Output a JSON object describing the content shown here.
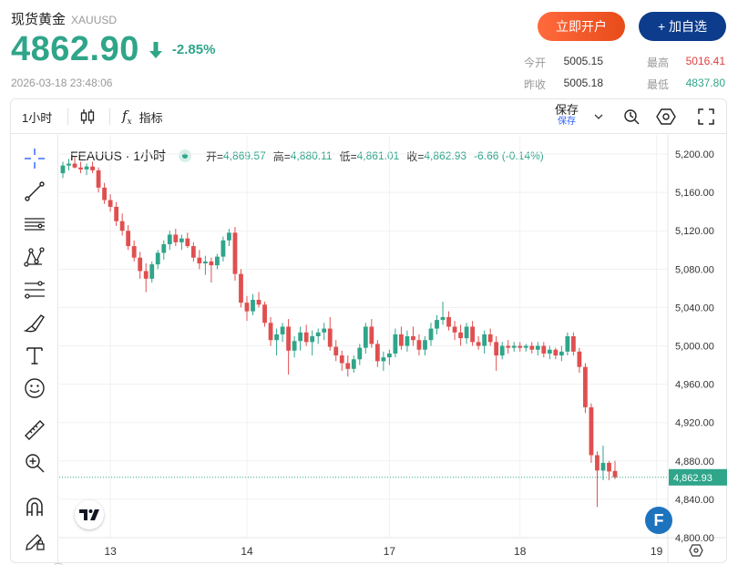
{
  "header": {
    "name": "现货黄金",
    "symbol": "XAUUSD",
    "price": "4862.90",
    "change_pct": "-2.85%",
    "timestamp": "2026-03-18 23:48:06",
    "open_account_label": "立即开户",
    "add_watch_label": "+ 加自选"
  },
  "stats": {
    "open_label": "今开",
    "open_value": "5005.15",
    "prev_close_label": "昨收",
    "prev_close_value": "5005.18",
    "high_label": "最高",
    "high_value": "5016.41",
    "low_label": "最低",
    "low_value": "4837.80",
    "high_color": "#e03e3e",
    "low_color": "#2fa58a"
  },
  "toolbar": {
    "interval": "1小时",
    "indicators_label": "指标",
    "save_label": "保存",
    "save_sub": "保存"
  },
  "legend": {
    "symbol": "FEAUUS · 1小时",
    "open_label": "开=",
    "open": "4,869.57",
    "high_label": "高=",
    "high": "4,880.11",
    "low_label": "低=",
    "low": "4,861.01",
    "close_label": "收=",
    "close": "4,862.93",
    "change": "-6.66 (-0.14%)"
  },
  "colors": {
    "up": "#2fa58a",
    "down": "#e04f4f",
    "accent": "#2962ff",
    "watch": "#0d3c8c",
    "open": "#ef5a27"
  },
  "left_tools": [
    "crosshair-icon",
    "trend-line-icon",
    "horizontal-lines-icon",
    "pattern-icon",
    "fib-icon",
    "brush-icon",
    "text-icon",
    "emoji-icon",
    "ruler-icon",
    "zoom-in-icon",
    "magnet-icon",
    "lock-edit-icon"
  ],
  "chart_data": {
    "type": "candlestick",
    "x_tick_labels": [
      "13",
      "14",
      "17",
      "18",
      "19"
    ],
    "y_tick_labels": [
      "5,200.00",
      "5,160.00",
      "5,120.00",
      "5,080.00",
      "5,040.00",
      "5,000.00",
      "4,960.00",
      "4,920.00",
      "4,880.00",
      "4,840.00",
      "4,800.00"
    ],
    "ylim": [
      4800,
      5220
    ],
    "last_price": 4862.93,
    "last_price_label": "4,862.93",
    "grid": true,
    "candles": [
      [
        5180,
        5192,
        5175,
        5188
      ],
      [
        5188,
        5195,
        5183,
        5190
      ],
      [
        5190,
        5197,
        5185,
        5186
      ],
      [
        5186,
        5192,
        5180,
        5184
      ],
      [
        5184,
        5190,
        5178,
        5187
      ],
      [
        5187,
        5192,
        5180,
        5183
      ],
      [
        5183,
        5186,
        5160,
        5165
      ],
      [
        5165,
        5170,
        5148,
        5152
      ],
      [
        5152,
        5158,
        5140,
        5145
      ],
      [
        5145,
        5150,
        5125,
        5130
      ],
      [
        5130,
        5138,
        5115,
        5120
      ],
      [
        5120,
        5126,
        5100,
        5104
      ],
      [
        5104,
        5110,
        5088,
        5092
      ],
      [
        5092,
        5098,
        5070,
        5078
      ],
      [
        5078,
        5086,
        5056,
        5070
      ],
      [
        5070,
        5088,
        5066,
        5085
      ],
      [
        5085,
        5100,
        5080,
        5097
      ],
      [
        5097,
        5110,
        5090,
        5106
      ],
      [
        5106,
        5120,
        5100,
        5116
      ],
      [
        5116,
        5122,
        5104,
        5108
      ],
      [
        5108,
        5116,
        5100,
        5112
      ],
      [
        5112,
        5118,
        5102,
        5104
      ],
      [
        5104,
        5108,
        5088,
        5092
      ],
      [
        5092,
        5100,
        5080,
        5086
      ],
      [
        5086,
        5094,
        5074,
        5088
      ],
      [
        5088,
        5092,
        5066,
        5084
      ],
      [
        5084,
        5096,
        5080,
        5093
      ],
      [
        5093,
        5114,
        5088,
        5110
      ],
      [
        5110,
        5122,
        5104,
        5118
      ],
      [
        5118,
        5124,
        5068,
        5075
      ],
      [
        5075,
        5080,
        5040,
        5045
      ],
      [
        5045,
        5052,
        5026,
        5036
      ],
      [
        5036,
        5054,
        5032,
        5048
      ],
      [
        5048,
        5056,
        5040,
        5043
      ],
      [
        5043,
        5046,
        5020,
        5024
      ],
      [
        5024,
        5030,
        5000,
        5006
      ],
      [
        5006,
        5018,
        4990,
        5012
      ],
      [
        5012,
        5024,
        5004,
        5020
      ],
      [
        5020,
        5028,
        4970,
        4995
      ],
      [
        4995,
        5010,
        4988,
        5005
      ],
      [
        5005,
        5020,
        4995,
        5014
      ],
      [
        5014,
        5022,
        5000,
        5004
      ],
      [
        5004,
        5016,
        4990,
        5010
      ],
      [
        5010,
        5018,
        5002,
        5014
      ],
      [
        5014,
        5024,
        5006,
        5018
      ],
      [
        5018,
        5030,
        4995,
        4999
      ],
      [
        4999,
        5006,
        4984,
        4990
      ],
      [
        4990,
        4995,
        4974,
        4982
      ],
      [
        4982,
        4990,
        4968,
        4976
      ],
      [
        4976,
        4990,
        4972,
        4986
      ],
      [
        4986,
        5002,
        4980,
        4998
      ],
      [
        4998,
        5024,
        4992,
        5020
      ],
      [
        5020,
        5028,
        4998,
        5002
      ],
      [
        5002,
        5006,
        4978,
        4984
      ],
      [
        4984,
        4994,
        4974,
        4988
      ],
      [
        4988,
        4996,
        4980,
        4992
      ],
      [
        4992,
        5018,
        4988,
        5012
      ],
      [
        5012,
        5020,
        4996,
        5000
      ],
      [
        5000,
        5016,
        4994,
        5010
      ],
      [
        5010,
        5020,
        5000,
        5006
      ],
      [
        5006,
        5012,
        4990,
        4996
      ],
      [
        4996,
        5010,
        4990,
        5006
      ],
      [
        5006,
        5024,
        5000,
        5018
      ],
      [
        5018,
        5032,
        5012,
        5027
      ],
      [
        5027,
        5046,
        5022,
        5030
      ],
      [
        5030,
        5036,
        5016,
        5020
      ],
      [
        5020,
        5026,
        5006,
        5014
      ],
      [
        5014,
        5022,
        5000,
        5008
      ],
      [
        5008,
        5024,
        5002,
        5020
      ],
      [
        5020,
        5026,
        5000,
        5004
      ],
      [
        5004,
        5010,
        4996,
        5000
      ],
      [
        5000,
        5016,
        4992,
        5012
      ],
      [
        5012,
        5018,
        5000,
        5004
      ],
      [
        5004,
        5010,
        4974,
        4990
      ],
      [
        4990,
        5004,
        4986,
        5000
      ],
      [
        5000,
        5006,
        4992,
        4998
      ],
      [
        4998,
        5004,
        4994,
        5000
      ],
      [
        5000,
        5004,
        4994,
        4998
      ],
      [
        4998,
        5002,
        4994,
        5000
      ],
      [
        5000,
        5004,
        4992,
        4996
      ],
      [
        4996,
        5004,
        4990,
        5000
      ],
      [
        5000,
        5004,
        4988,
        4992
      ],
      [
        4992,
        5000,
        4986,
        4996
      ],
      [
        4996,
        4998,
        4986,
        4990
      ],
      [
        4990,
        5000,
        4984,
        4994
      ],
      [
        4994,
        5014,
        4990,
        5010
      ],
      [
        5010,
        5014,
        4990,
        4994
      ],
      [
        4994,
        4998,
        4972,
        4978
      ],
      [
        4978,
        4982,
        4930,
        4936
      ],
      [
        4936,
        4940,
        4878,
        4886
      ],
      [
        4886,
        4890,
        4832,
        4870
      ],
      [
        4870,
        4896,
        4860,
        4878
      ],
      [
        4878,
        4880,
        4860,
        4869
      ],
      [
        4869.57,
        4880.11,
        4861.01,
        4862.93
      ]
    ]
  }
}
